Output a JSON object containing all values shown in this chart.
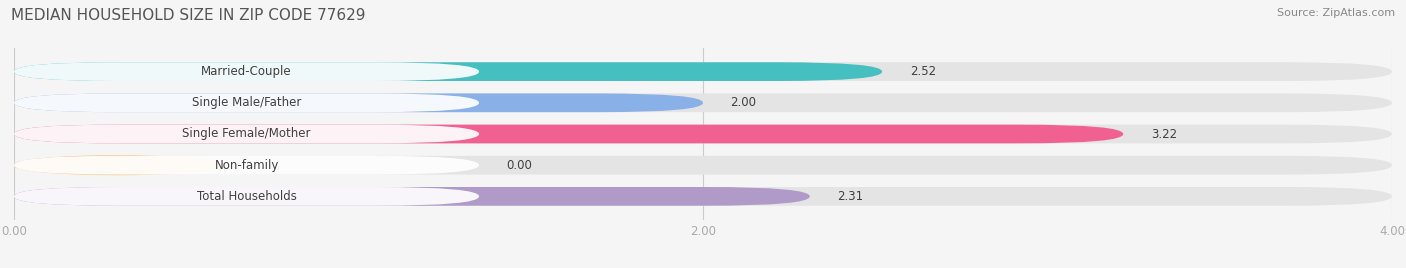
{
  "title": "MEDIAN HOUSEHOLD SIZE IN ZIP CODE 77629",
  "source": "Source: ZipAtlas.com",
  "categories": [
    "Married-Couple",
    "Single Male/Father",
    "Single Female/Mother",
    "Non-family",
    "Total Households"
  ],
  "values": [
    2.52,
    2.0,
    3.22,
    0.0,
    2.31
  ],
  "bar_colors": [
    "#45bfbf",
    "#8ab0e8",
    "#f06090",
    "#f5c98a",
    "#b09ac8"
  ],
  "xlim": [
    0,
    4.0
  ],
  "xticks": [
    0.0,
    2.0,
    4.0
  ],
  "xtick_labels": [
    "0.00",
    "2.00",
    "4.00"
  ],
  "title_fontsize": 11,
  "source_fontsize": 8,
  "label_fontsize": 8.5,
  "value_fontsize": 8.5,
  "bg_color": "#f5f5f5",
  "bar_bg_color": "#e4e4e4",
  "label_bg_color": "#ffffff"
}
